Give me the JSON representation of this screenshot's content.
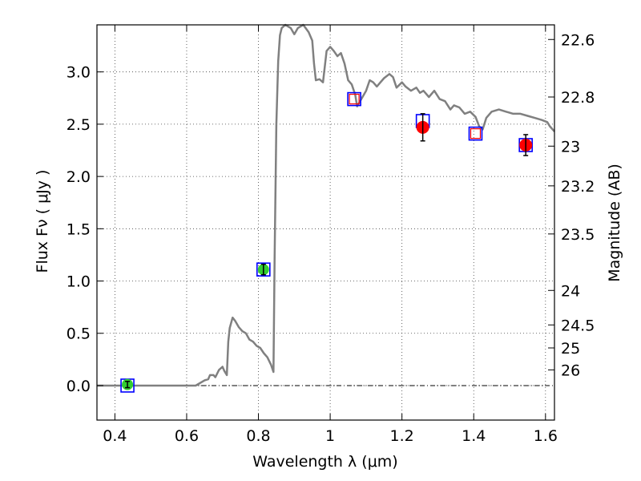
{
  "chart_data": {
    "type": "line",
    "xlabel": "Wavelength  λ (μm)",
    "ylabel": "Flux  Fν  ( μJy )",
    "y2label": "Magnitude (AB)",
    "xlim": [
      0.35,
      1.625
    ],
    "ylim": [
      -0.33,
      3.45
    ],
    "grid": true,
    "x_ticks": [
      0.4,
      0.6,
      0.8,
      1.0,
      1.2,
      1.4,
      1.6
    ],
    "x_tick_labels": [
      "0.4",
      "0.6",
      "0.8",
      "1",
      "1.2",
      "1.4",
      "1.6"
    ],
    "y_ticks": [
      0.0,
      0.5,
      1.0,
      1.5,
      2.0,
      2.5,
      3.0
    ],
    "y_tick_labels": [
      "0.0",
      "0.5",
      "1.0",
      "1.5",
      "2.0",
      "2.5",
      "3.0"
    ],
    "right_axis_ticks": [
      {
        "label": "22.6",
        "flux": 3.31
      },
      {
        "label": "22.8",
        "flux": 2.76
      },
      {
        "label": "23",
        "flux": 2.29
      },
      {
        "label": "23.2",
        "flux": 1.91
      },
      {
        "label": "23.5",
        "flux": 1.45
      },
      {
        "label": "24",
        "flux": 0.91
      },
      {
        "label": "24.5",
        "flux": 0.58
      },
      {
        "label": "25",
        "flux": 0.36
      },
      {
        "label": "26",
        "flux": 0.15
      }
    ],
    "series": [
      {
        "kind": "model_sed",
        "color": "#808080",
        "points": [
          [
            0.35,
            0.0
          ],
          [
            0.6,
            0.0
          ],
          [
            0.625,
            0.0
          ],
          [
            0.65,
            0.05
          ],
          [
            0.66,
            0.06
          ],
          [
            0.665,
            0.1
          ],
          [
            0.675,
            0.1
          ],
          [
            0.68,
            0.08
          ],
          [
            0.69,
            0.15
          ],
          [
            0.7,
            0.18
          ],
          [
            0.705,
            0.14
          ],
          [
            0.712,
            0.1
          ],
          [
            0.716,
            0.42
          ],
          [
            0.72,
            0.55
          ],
          [
            0.728,
            0.65
          ],
          [
            0.735,
            0.62
          ],
          [
            0.745,
            0.56
          ],
          [
            0.755,
            0.52
          ],
          [
            0.765,
            0.5
          ],
          [
            0.775,
            0.44
          ],
          [
            0.785,
            0.42
          ],
          [
            0.795,
            0.38
          ],
          [
            0.805,
            0.36
          ],
          [
            0.815,
            0.31
          ],
          [
            0.825,
            0.27
          ],
          [
            0.835,
            0.2
          ],
          [
            0.842,
            0.13
          ],
          [
            0.845,
            1.2
          ],
          [
            0.85,
            2.5
          ],
          [
            0.855,
            3.1
          ],
          [
            0.86,
            3.35
          ],
          [
            0.865,
            3.42
          ],
          [
            0.875,
            3.45
          ],
          [
            0.89,
            3.42
          ],
          [
            0.9,
            3.36
          ],
          [
            0.91,
            3.42
          ],
          [
            0.925,
            3.45
          ],
          [
            0.94,
            3.38
          ],
          [
            0.95,
            3.3
          ],
          [
            0.955,
            3.08
          ],
          [
            0.96,
            2.92
          ],
          [
            0.97,
            2.93
          ],
          [
            0.98,
            2.9
          ],
          [
            0.99,
            3.2
          ],
          [
            1.0,
            3.24
          ],
          [
            1.01,
            3.2
          ],
          [
            1.02,
            3.15
          ],
          [
            1.03,
            3.18
          ],
          [
            1.04,
            3.08
          ],
          [
            1.05,
            2.92
          ],
          [
            1.06,
            2.88
          ],
          [
            1.07,
            2.78
          ],
          [
            1.075,
            2.67
          ],
          [
            1.085,
            2.73
          ],
          [
            1.1,
            2.82
          ],
          [
            1.11,
            2.92
          ],
          [
            1.12,
            2.9
          ],
          [
            1.13,
            2.86
          ],
          [
            1.14,
            2.9
          ],
          [
            1.15,
            2.94
          ],
          [
            1.165,
            2.98
          ],
          [
            1.175,
            2.95
          ],
          [
            1.185,
            2.85
          ],
          [
            1.2,
            2.9
          ],
          [
            1.21,
            2.86
          ],
          [
            1.225,
            2.82
          ],
          [
            1.24,
            2.85
          ],
          [
            1.25,
            2.8
          ],
          [
            1.26,
            2.82
          ],
          [
            1.275,
            2.76
          ],
          [
            1.29,
            2.82
          ],
          [
            1.305,
            2.74
          ],
          [
            1.32,
            2.72
          ],
          [
            1.335,
            2.64
          ],
          [
            1.345,
            2.68
          ],
          [
            1.36,
            2.66
          ],
          [
            1.375,
            2.6
          ],
          [
            1.39,
            2.62
          ],
          [
            1.405,
            2.57
          ],
          [
            1.415,
            2.48
          ],
          [
            1.425,
            2.45
          ],
          [
            1.435,
            2.56
          ],
          [
            1.45,
            2.62
          ],
          [
            1.47,
            2.64
          ],
          [
            1.49,
            2.62
          ],
          [
            1.51,
            2.6
          ],
          [
            1.53,
            2.6
          ],
          [
            1.55,
            2.58
          ],
          [
            1.57,
            2.56
          ],
          [
            1.59,
            2.54
          ],
          [
            1.605,
            2.52
          ],
          [
            1.612,
            2.48
          ],
          [
            1.625,
            2.43
          ]
        ]
      },
      {
        "kind": "model_photometry",
        "marker": "open-square",
        "color": "#0000ff",
        "x": [
          0.435,
          0.814,
          1.067,
          1.258,
          1.405,
          1.545
        ],
        "y": [
          0.0,
          1.11,
          2.74,
          2.53,
          2.41,
          2.3
        ]
      },
      {
        "kind": "observed_detections",
        "marker": "circle",
        "color": "#32cd32",
        "x": [
          0.435,
          0.814
        ],
        "y": [
          0.01,
          1.11
        ],
        "err": [
          0.03,
          0.05
        ]
      },
      {
        "kind": "observed_red",
        "marker": "circle",
        "color": "#ff0000",
        "x": [
          1.258,
          1.545
        ],
        "y": [
          2.47,
          2.3
        ],
        "err": [
          0.13,
          0.1
        ]
      },
      {
        "kind": "observed_limits",
        "marker": "open-square",
        "color": "#ff0000",
        "x": [
          1.067,
          1.405
        ],
        "y": [
          2.74,
          2.41
        ]
      }
    ]
  }
}
